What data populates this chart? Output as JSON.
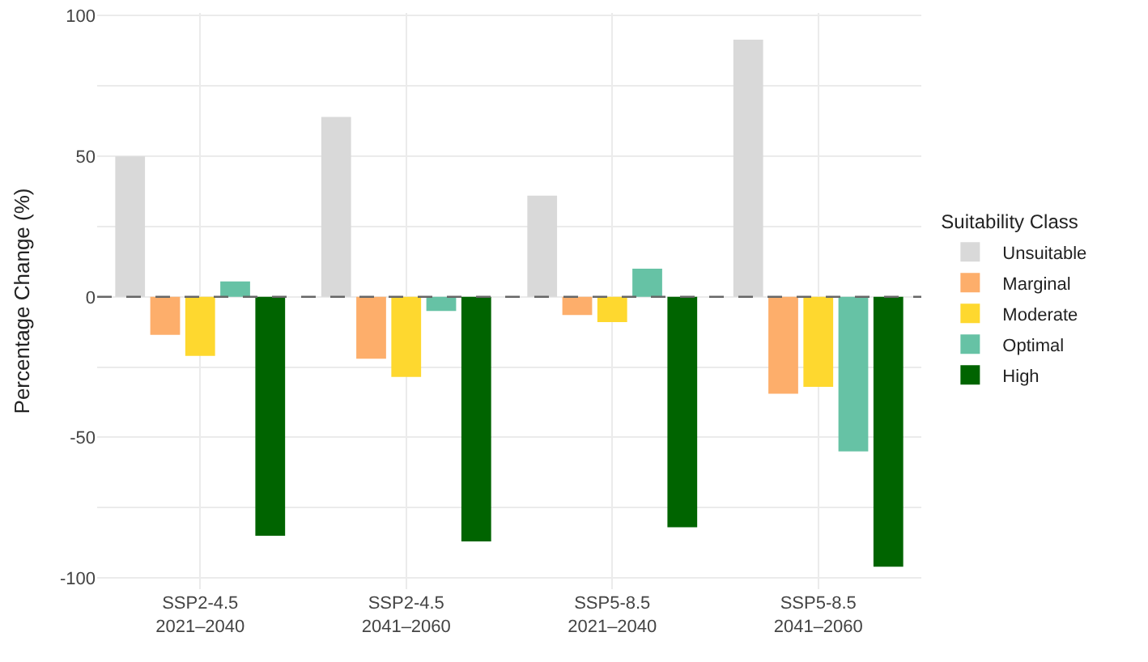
{
  "chart_data": {
    "type": "bar",
    "ylabel": "Percentage Change (%)",
    "legend_title": "Suitability Class",
    "categories": [
      "SSP2-4.5\n2021–2040",
      "SSP2-4.5\n2041–2060",
      "SSP5-8.5\n2021–2040",
      "SSP5-8.5\n2041–2060"
    ],
    "series": [
      {
        "name": "Unsuitable",
        "color": "#d9d9d9",
        "values": [
          50,
          64,
          36,
          91.5
        ]
      },
      {
        "name": "Marginal",
        "color": "#fdae6b",
        "values": [
          -13.5,
          -22,
          -6.5,
          -34.5
        ]
      },
      {
        "name": "Moderate",
        "color": "#fed82f",
        "values": [
          -21,
          -28.5,
          -9,
          -32
        ]
      },
      {
        "name": "Optimal",
        "color": "#66c2a5",
        "values": [
          5.5,
          -5,
          10,
          -55
        ]
      },
      {
        "name": "High",
        "color": "#006400",
        "values": [
          -85,
          -87,
          -82,
          -96
        ]
      }
    ],
    "ylim": [
      -104,
      101
    ],
    "yticks": [
      -100,
      {
        "value": -75,
        "label": null
      },
      -50,
      {
        "value": -25,
        "label": null
      },
      0,
      {
        "value": 25,
        "label": null
      },
      50,
      {
        "value": 75,
        "label": null
      },
      100
    ],
    "ref_lines": [
      {
        "axis": "y",
        "value": 0,
        "color": "#666666",
        "line_style": "dashed"
      }
    ],
    "grid": true,
    "legend": "right"
  }
}
